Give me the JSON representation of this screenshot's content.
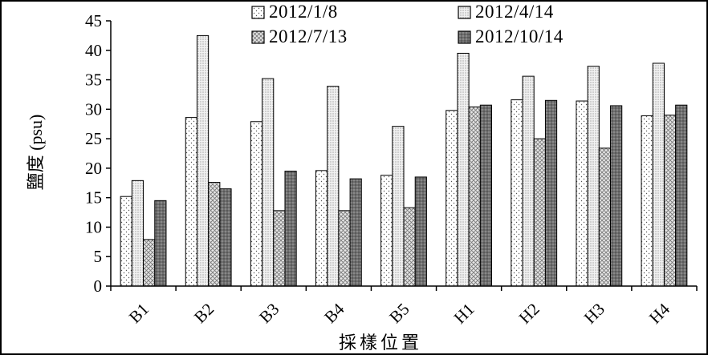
{
  "chart_data": {
    "type": "bar",
    "categories": [
      "B1",
      "B2",
      "B3",
      "B4",
      "B5",
      "H1",
      "H2",
      "H3",
      "H4"
    ],
    "series": [
      {
        "name": "2012/1/8",
        "values": [
          15.2,
          28.6,
          27.9,
          19.6,
          18.8,
          29.8,
          31.6,
          31.4,
          28.9
        ],
        "pattern": "dots-sparse"
      },
      {
        "name": "2012/4/14",
        "values": [
          17.9,
          42.5,
          35.2,
          33.9,
          27.1,
          39.5,
          35.6,
          37.3,
          37.8
        ],
        "pattern": "dots-dense"
      },
      {
        "name": "2012/7/13",
        "values": [
          7.9,
          17.6,
          12.8,
          12.8,
          13.3,
          30.4,
          25.0,
          23.4,
          29.0
        ],
        "pattern": "crosshatch"
      },
      {
        "name": "2012/10/14",
        "values": [
          14.5,
          16.5,
          19.5,
          18.2,
          18.5,
          30.7,
          31.5,
          30.6,
          30.7
        ],
        "pattern": "dark-dots"
      }
    ],
    "title": "",
    "xlabel": "採樣位置",
    "ylabel": "鹽度 (psu)",
    "ylim": [
      0,
      45
    ],
    "yticks": [
      0,
      5,
      10,
      15,
      20,
      25,
      30,
      35,
      40,
      45
    ],
    "grid": false,
    "legend_position": "top",
    "colors": {
      "background": "#ffffff",
      "axis": "#000000",
      "series4_fill": "#6e6e6e"
    }
  }
}
